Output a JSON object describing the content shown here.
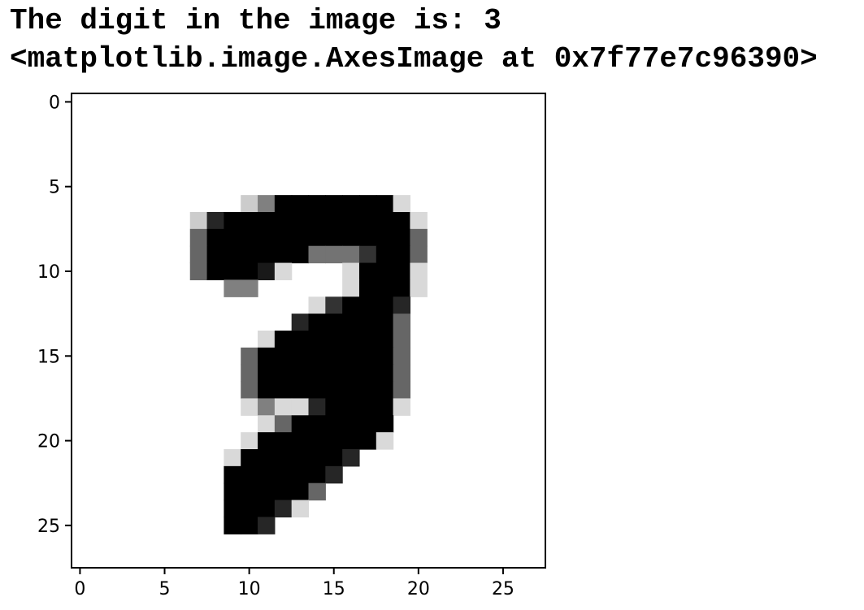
{
  "output": {
    "line1": "The digit in the image is: 3",
    "line2": "<matplotlib.image.AxesImage at 0x7f77e7c96390>"
  },
  "chart_data": {
    "type": "heatmap",
    "title": "",
    "xlabel": "",
    "ylabel": "",
    "colormap": "gray_r",
    "xlim": [
      -0.5,
      27.5
    ],
    "ylim": [
      27.5,
      -0.5
    ],
    "xticks": [
      0,
      5,
      10,
      15,
      20,
      25
    ],
    "yticks": [
      0,
      5,
      10,
      15,
      20,
      25
    ],
    "xticklabels": [
      "0",
      "5",
      "10",
      "15",
      "20",
      "25"
    ],
    "yticklabels": [
      "0",
      "5",
      "10",
      "15",
      "20",
      "25"
    ],
    "grid": false,
    "values": [
      [
        0,
        0,
        0,
        0,
        0,
        0,
        0,
        0,
        0,
        0,
        0,
        0,
        0,
        0,
        0,
        0,
        0,
        0,
        0,
        0,
        0,
        0,
        0,
        0,
        0,
        0,
        0,
        0
      ],
      [
        0,
        0,
        0,
        0,
        0,
        0,
        0,
        0,
        0,
        0,
        0,
        0,
        0,
        0,
        0,
        0,
        0,
        0,
        0,
        0,
        0,
        0,
        0,
        0,
        0,
        0,
        0,
        0
      ],
      [
        0,
        0,
        0,
        0,
        0,
        0,
        0,
        0,
        0,
        0,
        0,
        0,
        0,
        0,
        0,
        0,
        0,
        0,
        0,
        0,
        0,
        0,
        0,
        0,
        0,
        0,
        0,
        0
      ],
      [
        0,
        0,
        0,
        0,
        0,
        0,
        0,
        0,
        0,
        0,
        0,
        0,
        0,
        0,
        0,
        0,
        0,
        0,
        0,
        0,
        0,
        0,
        0,
        0,
        0,
        0,
        0,
        0
      ],
      [
        0,
        0,
        0,
        0,
        0,
        0,
        0,
        0,
        0,
        0,
        0,
        0,
        0,
        0,
        0,
        0,
        0,
        0,
        0,
        0,
        0,
        0,
        0,
        0,
        0,
        0,
        0,
        0
      ],
      [
        0,
        0,
        0,
        0,
        0,
        0,
        0,
        0,
        0,
        0,
        0,
        0,
        0,
        0,
        0,
        0,
        0,
        0,
        0,
        0,
        0,
        0,
        0,
        0,
        0,
        0,
        0,
        0
      ],
      [
        0,
        0,
        0,
        0,
        0,
        0,
        0,
        0,
        0,
        0,
        0.2,
        0.5,
        1,
        1,
        1,
        1,
        1,
        1,
        1,
        0.15,
        0,
        0,
        0,
        0,
        0,
        0,
        0,
        0
      ],
      [
        0,
        0,
        0,
        0,
        0,
        0,
        0,
        0.2,
        0.85,
        1,
        1,
        1,
        1,
        1,
        1,
        1,
        1,
        1,
        1,
        1,
        0.15,
        0,
        0,
        0,
        0,
        0,
        0,
        0
      ],
      [
        0,
        0,
        0,
        0,
        0,
        0,
        0,
        0.6,
        1,
        1,
        1,
        1,
        1,
        1,
        1,
        1,
        1,
        1,
        1,
        1,
        0.6,
        0,
        0,
        0,
        0,
        0,
        0,
        0
      ],
      [
        0,
        0,
        0,
        0,
        0,
        0,
        0,
        0.6,
        1,
        1,
        1,
        1,
        1,
        1,
        0.55,
        0.55,
        0.55,
        0.8,
        1,
        1,
        0.6,
        0,
        0,
        0,
        0,
        0,
        0,
        0
      ],
      [
        0,
        0,
        0,
        0,
        0,
        0,
        0,
        0.6,
        1,
        1,
        1,
        0.9,
        0.15,
        0,
        0,
        0,
        0.15,
        1,
        1,
        1,
        0.15,
        0,
        0,
        0,
        0,
        0,
        0,
        0
      ],
      [
        0,
        0,
        0,
        0,
        0,
        0,
        0,
        0,
        0,
        0.5,
        0.5,
        0,
        0,
        0,
        0,
        0,
        0.15,
        1,
        1,
        1,
        0.15,
        0,
        0,
        0,
        0,
        0,
        0,
        0
      ],
      [
        0,
        0,
        0,
        0,
        0,
        0,
        0,
        0,
        0,
        0,
        0,
        0,
        0,
        0,
        0.15,
        0.8,
        1,
        1,
        1,
        0.85,
        0,
        0,
        0,
        0,
        0,
        0,
        0,
        0
      ],
      [
        0,
        0,
        0,
        0,
        0,
        0,
        0,
        0,
        0,
        0,
        0,
        0,
        0,
        0.85,
        1,
        1,
        1,
        1,
        1,
        0.6,
        0,
        0,
        0,
        0,
        0,
        0,
        0,
        0
      ],
      [
        0,
        0,
        0,
        0,
        0,
        0,
        0,
        0,
        0,
        0,
        0,
        0.15,
        1,
        1,
        1,
        1,
        1,
        1,
        1,
        0.6,
        0,
        0,
        0,
        0,
        0,
        0,
        0,
        0
      ],
      [
        0,
        0,
        0,
        0,
        0,
        0,
        0,
        0,
        0,
        0,
        0.6,
        1,
        1,
        1,
        1,
        1,
        1,
        1,
        1,
        0.6,
        0,
        0,
        0,
        0,
        0,
        0,
        0,
        0
      ],
      [
        0,
        0,
        0,
        0,
        0,
        0,
        0,
        0,
        0,
        0,
        0.6,
        1,
        1,
        1,
        1,
        1,
        1,
        1,
        1,
        0.6,
        0,
        0,
        0,
        0,
        0,
        0,
        0,
        0
      ],
      [
        0,
        0,
        0,
        0,
        0,
        0,
        0,
        0,
        0,
        0,
        0.6,
        1,
        1,
        1,
        1,
        1,
        1,
        1,
        1,
        0.6,
        0,
        0,
        0,
        0,
        0,
        0,
        0,
        0
      ],
      [
        0,
        0,
        0,
        0,
        0,
        0,
        0,
        0,
        0,
        0,
        0.15,
        0.5,
        0.15,
        0.15,
        0.85,
        1,
        1,
        1,
        1,
        0.15,
        0,
        0,
        0,
        0,
        0,
        0,
        0,
        0
      ],
      [
        0,
        0,
        0,
        0,
        0,
        0,
        0,
        0,
        0,
        0,
        0,
        0.15,
        0.6,
        1,
        1,
        1,
        1,
        1,
        1,
        0,
        0,
        0,
        0,
        0,
        0,
        0,
        0,
        0
      ],
      [
        0,
        0,
        0,
        0,
        0,
        0,
        0,
        0,
        0,
        0,
        0.15,
        1,
        1,
        1,
        1,
        1,
        1,
        1,
        0.15,
        0,
        0,
        0,
        0,
        0,
        0,
        0,
        0,
        0
      ],
      [
        0,
        0,
        0,
        0,
        0,
        0,
        0,
        0,
        0,
        0.15,
        1,
        1,
        1,
        1,
        1,
        1,
        0.85,
        0,
        0,
        0,
        0,
        0,
        0,
        0,
        0,
        0,
        0,
        0
      ],
      [
        0,
        0,
        0,
        0,
        0,
        0,
        0,
        0,
        0,
        1,
        1,
        1,
        1,
        1,
        1,
        0.85,
        0,
        0,
        0,
        0,
        0,
        0,
        0,
        0,
        0,
        0,
        0,
        0
      ],
      [
        0,
        0,
        0,
        0,
        0,
        0,
        0,
        0,
        0,
        1,
        1,
        1,
        1,
        1,
        0.6,
        0,
        0,
        0,
        0,
        0,
        0,
        0,
        0,
        0,
        0,
        0,
        0,
        0
      ],
      [
        0,
        0,
        0,
        0,
        0,
        0,
        0,
        0,
        0,
        1,
        1,
        1,
        0.85,
        0.15,
        0,
        0,
        0,
        0,
        0,
        0,
        0,
        0,
        0,
        0,
        0,
        0,
        0,
        0
      ],
      [
        0,
        0,
        0,
        0,
        0,
        0,
        0,
        0,
        0,
        1,
        1,
        0.85,
        0,
        0,
        0,
        0,
        0,
        0,
        0,
        0,
        0,
        0,
        0,
        0,
        0,
        0,
        0,
        0
      ],
      [
        0,
        0,
        0,
        0,
        0,
        0,
        0,
        0,
        0,
        0,
        0,
        0,
        0,
        0,
        0,
        0,
        0,
        0,
        0,
        0,
        0,
        0,
        0,
        0,
        0,
        0,
        0,
        0
      ],
      [
        0,
        0,
        0,
        0,
        0,
        0,
        0,
        0,
        0,
        0,
        0,
        0,
        0,
        0,
        0,
        0,
        0,
        0,
        0,
        0,
        0,
        0,
        0,
        0,
        0,
        0,
        0,
        0
      ]
    ]
  }
}
